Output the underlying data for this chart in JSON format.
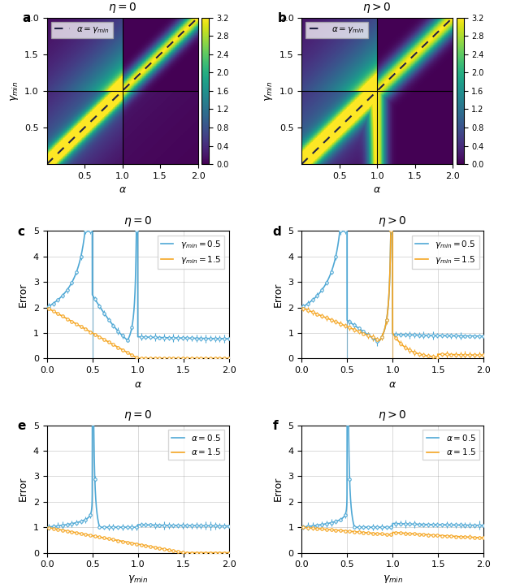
{
  "colorbar_ticks": [
    0.0,
    0.4,
    0.8,
    1.2,
    1.6,
    2.0,
    2.4,
    2.8,
    3.2
  ],
  "heatmap_vmin": 0.0,
  "heatmap_vmax": 3.2,
  "blue_color": "#4fa8d5",
  "orange_color": "#f5a623",
  "ylabel_error": "Error",
  "ylim_line": [
    0,
    5
  ],
  "gray_vline_color": "#888888"
}
